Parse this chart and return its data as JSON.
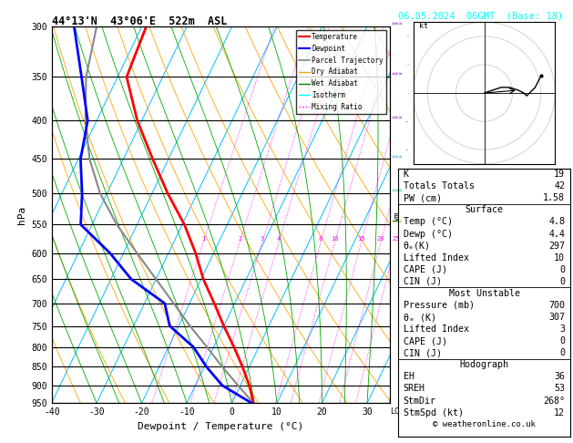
{
  "title_left": "44°13'N  43°06'E  522m  ASL",
  "title_right": "06.05.2024  06GMT  (Base: 18)",
  "xlabel": "Dewpoint / Temperature (°C)",
  "ylabel_left": "hPa",
  "pressure_levels": [
    300,
    350,
    400,
    450,
    500,
    550,
    600,
    650,
    700,
    750,
    800,
    850,
    900,
    950
  ],
  "isotherm_color": "#00bfff",
  "dry_adiabat_color": "#ffa500",
  "wet_adiabat_color": "#00aa00",
  "mixing_ratio_color": "#ff00ff",
  "temp_profile_pressure": [
    950,
    900,
    850,
    800,
    750,
    700,
    650,
    600,
    550,
    500,
    450,
    400,
    350,
    300
  ],
  "temp_profile_temp": [
    4.8,
    2.0,
    -1.5,
    -5.5,
    -10.0,
    -14.5,
    -19.5,
    -24.0,
    -29.5,
    -36.5,
    -43.5,
    -51.0,
    -58.0,
    -59.0
  ],
  "dewp_profile_temp": [
    4.4,
    -4.0,
    -9.5,
    -14.5,
    -22.0,
    -25.5,
    -35.5,
    -43.0,
    -52.5,
    -55.5,
    -59.5,
    -62.0,
    -68.0,
    -75.0
  ],
  "parcel_profile_temp": [
    4.8,
    -0.5,
    -6.0,
    -11.5,
    -17.5,
    -23.5,
    -30.0,
    -37.0,
    -44.5,
    -51.5,
    -57.5,
    -62.5,
    -67.0,
    -70.0
  ],
  "temp_color": "#ff0000",
  "dewp_color": "#0000ff",
  "parcel_color": "#888888",
  "mixing_ratio_values": [
    1,
    2,
    3,
    4,
    8,
    10,
    15,
    20,
    25
  ],
  "stats": {
    "K": 19,
    "Totals_Totals": 42,
    "PW_cm": 1.58,
    "Surface_Temp": 4.8,
    "Surface_Dewp": 4.4,
    "Surface_theta_e": 297,
    "Lifted_Index": 10,
    "CAPE": 0,
    "CIN": 0,
    "MU_Pressure": 700,
    "MU_theta_e": 307,
    "MU_Lifted_Index": 3,
    "MU_CAPE": 0,
    "MU_CIN": 0,
    "EH": 36,
    "SREH": 53,
    "StmDir": 268,
    "StmSpd_kt": 12
  },
  "copyright": "© weatheronline.co.uk",
  "hodo_u": [
    0,
    3,
    6,
    9,
    12,
    14,
    15,
    16,
    17,
    18,
    19,
    20
  ],
  "hodo_v": [
    0,
    1,
    2,
    2,
    1,
    0,
    -1,
    0,
    1,
    2,
    4,
    6
  ]
}
